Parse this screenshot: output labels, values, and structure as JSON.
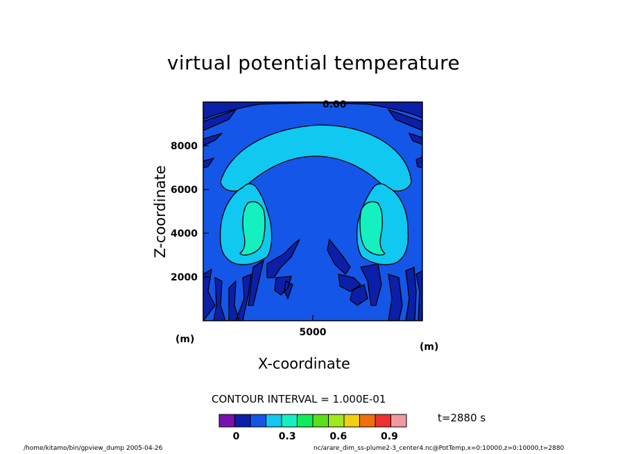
{
  "chart_data": {
    "type": "heatmap",
    "title": "virtual potential temperature",
    "xlabel": "X-coordinate",
    "ylabel": "Z-coordinate",
    "x_unit": "(m)",
    "y_unit": "(m)",
    "xlim": [
      0,
      10000
    ],
    "ylim": [
      0,
      10000
    ],
    "x_ticks": [
      5000
    ],
    "y_ticks": [
      2000,
      4000,
      6000,
      8000
    ],
    "contour_label": "0.00",
    "contour_interval_text": "CONTOUR INTERVAL = 1.000E-01",
    "time_text": "t=2880 s",
    "colorbar": {
      "levels": [
        -0.1,
        0.0,
        0.1,
        0.2,
        0.3,
        0.4,
        0.5,
        0.6,
        0.7,
        0.8,
        0.9,
        1.0
      ],
      "labels": [
        "0",
        "0.3",
        "0.6",
        "0.9"
      ],
      "label_values": [
        0.0,
        0.3,
        0.6,
        0.9
      ],
      "colors": [
        "#7a10b0",
        "#0b1fa8",
        "#1456e8",
        "#10c8f0",
        "#14f0c0",
        "#12ec5a",
        "#58e01a",
        "#a0e81a",
        "#f0d010",
        "#f07010",
        "#f03030",
        "#f09aa0"
      ]
    },
    "regions": [
      {
        "name": "background",
        "value": 0.05
      },
      {
        "name": "negative-patches",
        "value": -0.02
      },
      {
        "name": "dome-arc",
        "value": 0.15
      },
      {
        "name": "left-lobe",
        "value": 0.15
      },
      {
        "name": "right-lobe",
        "value": 0.15
      },
      {
        "name": "left-core",
        "value": 0.25
      },
      {
        "name": "right-core",
        "value": 0.25
      }
    ]
  },
  "footer": {
    "left": "/home/kitamo/bin/gpview_dump  2005-04-26",
    "right": "nc/arare_dim_ss-plume2-3_center4.nc@PotTemp,x=0:10000,z=0:10000,t=2880"
  }
}
